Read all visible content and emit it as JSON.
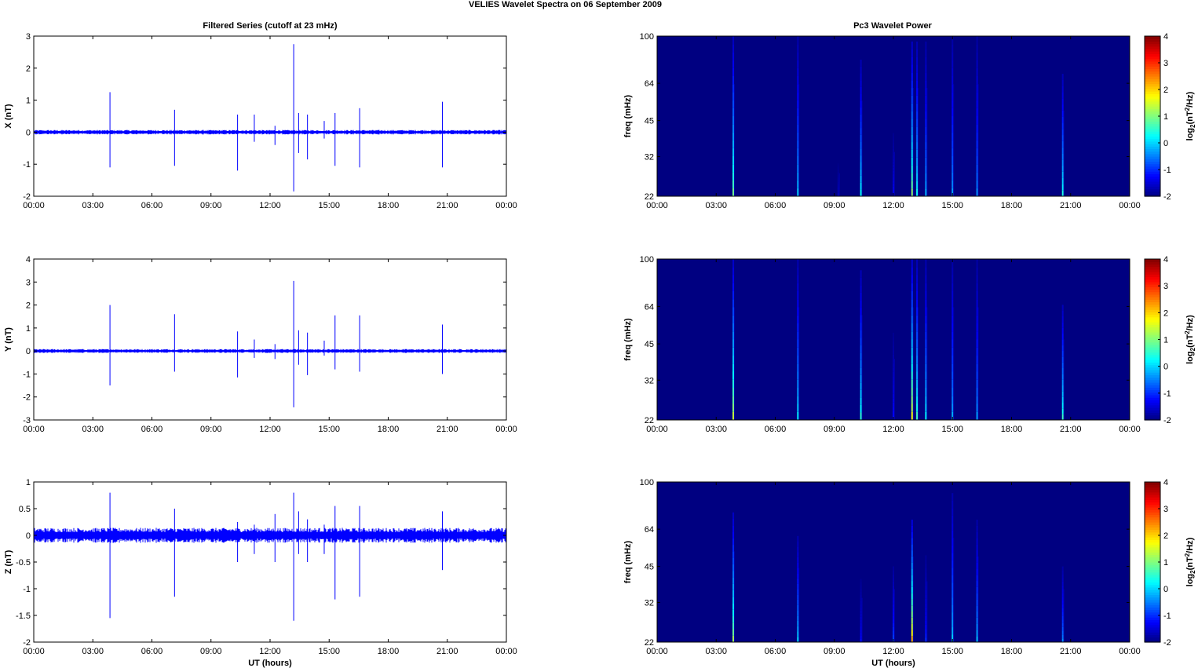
{
  "figure": {
    "title": "VELIES Wavelet Spectra on 06 September 2009",
    "left_title": "Filtered Series (cutoff at 23 mHz)",
    "right_title": "Pc3 Wavelet Power"
  },
  "chart_data": [
    {
      "type": "line",
      "title": "Filtered Series (cutoff at 23 mHz)",
      "xlabel": "",
      "ylabel": "X (nT)",
      "xlim": [
        "00:00",
        "00:00"
      ],
      "x_ticks": [
        "00:00",
        "03:00",
        "06:00",
        "09:00",
        "12:00",
        "15:00",
        "18:00",
        "21:00",
        "00:00"
      ],
      "ylim": [
        -2,
        3
      ],
      "y_ticks": [
        "-2",
        "-1",
        "0",
        "1",
        "2",
        "3"
      ],
      "color": "#0000ff",
      "noise_amplitude_nT": 0.05,
      "spikes": [
        {
          "time_h": 3.87,
          "max": 1.25,
          "min": -1.1
        },
        {
          "time_h": 7.15,
          "max": 0.7,
          "min": -1.05
        },
        {
          "time_h": 10.35,
          "max": 0.55,
          "min": -1.2
        },
        {
          "time_h": 11.2,
          "max": 0.55,
          "min": -0.3
        },
        {
          "time_h": 12.25,
          "max": 0.2,
          "min": -0.4
        },
        {
          "time_h": 13.2,
          "max": 2.75,
          "min": -1.85
        },
        {
          "time_h": 13.45,
          "max": 0.6,
          "min": -0.65
        },
        {
          "time_h": 13.9,
          "max": 0.55,
          "min": -0.85
        },
        {
          "time_h": 14.75,
          "max": 0.35,
          "min": -0.2
        },
        {
          "time_h": 15.3,
          "max": 0.6,
          "min": -1.05
        },
        {
          "time_h": 16.55,
          "max": 0.75,
          "min": -1.1
        },
        {
          "time_h": 20.75,
          "max": 0.95,
          "min": -1.1
        }
      ]
    },
    {
      "type": "line",
      "title": "",
      "xlabel": "",
      "ylabel": "Y (nT)",
      "xlim": [
        "00:00",
        "00:00"
      ],
      "x_ticks": [
        "00:00",
        "03:00",
        "06:00",
        "09:00",
        "12:00",
        "15:00",
        "18:00",
        "21:00",
        "00:00"
      ],
      "ylim": [
        -3,
        4
      ],
      "y_ticks": [
        "-3",
        "-2",
        "-1",
        "0",
        "1",
        "2",
        "3",
        "4"
      ],
      "color": "#0000ff",
      "noise_amplitude_nT": 0.06,
      "spikes": [
        {
          "time_h": 3.87,
          "max": 2.0,
          "min": -1.5
        },
        {
          "time_h": 7.15,
          "max": 1.6,
          "min": -0.9
        },
        {
          "time_h": 10.35,
          "max": 0.85,
          "min": -1.15
        },
        {
          "time_h": 11.2,
          "max": 0.5,
          "min": -0.3
        },
        {
          "time_h": 12.25,
          "max": 0.3,
          "min": -0.35
        },
        {
          "time_h": 13.2,
          "max": 3.05,
          "min": -2.45
        },
        {
          "time_h": 13.45,
          "max": 0.9,
          "min": -0.6
        },
        {
          "time_h": 13.9,
          "max": 0.8,
          "min": -1.05
        },
        {
          "time_h": 14.75,
          "max": 0.45,
          "min": -0.2
        },
        {
          "time_h": 15.3,
          "max": 1.55,
          "min": -0.8
        },
        {
          "time_h": 16.55,
          "max": 1.55,
          "min": -0.9
        },
        {
          "time_h": 20.75,
          "max": 1.15,
          "min": -1.0
        }
      ]
    },
    {
      "type": "line",
      "title": "",
      "xlabel": "UT (hours)",
      "ylabel": "Z (nT)",
      "xlim": [
        "00:00",
        "00:00"
      ],
      "x_ticks": [
        "00:00",
        "03:00",
        "06:00",
        "09:00",
        "12:00",
        "15:00",
        "18:00",
        "21:00",
        "00:00"
      ],
      "ylim": [
        -2,
        1
      ],
      "y_ticks": [
        "-2",
        "-1.5",
        "-1",
        "-0.5",
        "0",
        "0.5",
        "1"
      ],
      "color": "#0000ff",
      "noise_amplitude_nT": 0.1,
      "spikes": [
        {
          "time_h": 3.87,
          "max": 0.8,
          "min": -1.55
        },
        {
          "time_h": 7.15,
          "max": 0.5,
          "min": -1.15
        },
        {
          "time_h": 10.35,
          "max": 0.25,
          "min": -0.5
        },
        {
          "time_h": 11.2,
          "max": 0.2,
          "min": -0.35
        },
        {
          "time_h": 12.25,
          "max": 0.4,
          "min": -0.5
        },
        {
          "time_h": 13.2,
          "max": 0.8,
          "min": -1.6
        },
        {
          "time_h": 13.45,
          "max": 0.45,
          "min": -0.35
        },
        {
          "time_h": 13.9,
          "max": 0.3,
          "min": -0.5
        },
        {
          "time_h": 14.75,
          "max": 0.2,
          "min": -0.35
        },
        {
          "time_h": 15.3,
          "max": 0.55,
          "min": -1.2
        },
        {
          "time_h": 16.55,
          "max": 0.55,
          "min": -1.15
        },
        {
          "time_h": 20.75,
          "max": 0.45,
          "min": -0.65
        }
      ]
    },
    {
      "type": "heatmap",
      "title": "Pc3 Wavelet Power",
      "xlabel": "",
      "ylabel": "freq (mHz)",
      "x_ticks": [
        "00:00",
        "03:00",
        "06:00",
        "09:00",
        "12:00",
        "15:00",
        "18:00",
        "21:00",
        "00:00"
      ],
      "y_ticks": [
        "22",
        "32",
        "45",
        "64",
        "100"
      ],
      "ylim_mHz": [
        22,
        100
      ],
      "y_scale": "log",
      "colorbar": {
        "label": "log2(nT2/Hz)",
        "range": [
          -2,
          4
        ],
        "ticks": [
          "-2",
          "-1",
          "0",
          "1",
          "2",
          "3",
          "4"
        ],
        "colormap": "jet"
      },
      "background_value": -2,
      "streaks": [
        {
          "time_h": 3.87,
          "peak": 0.9,
          "top_mHz": 100
        },
        {
          "time_h": 7.15,
          "peak": 0.0,
          "top_mHz": 100
        },
        {
          "time_h": 9.2,
          "peak": -1.6,
          "top_mHz": 30
        },
        {
          "time_h": 10.35,
          "peak": 0.3,
          "top_mHz": 80
        },
        {
          "time_h": 12.0,
          "peak": -1.3,
          "top_mHz": 40
        },
        {
          "time_h": 12.95,
          "peak": 1.1,
          "top_mHz": 95
        },
        {
          "time_h": 13.2,
          "peak": 0.3,
          "top_mHz": 95
        },
        {
          "time_h": 13.65,
          "peak": -0.2,
          "top_mHz": 95
        },
        {
          "time_h": 15.0,
          "peak": -0.3,
          "top_mHz": 100
        },
        {
          "time_h": 16.25,
          "peak": -0.4,
          "top_mHz": 100
        },
        {
          "time_h": 20.6,
          "peak": 0.4,
          "top_mHz": 70
        }
      ]
    },
    {
      "type": "heatmap",
      "title": "",
      "xlabel": "",
      "ylabel": "freq (mHz)",
      "x_ticks": [
        "00:00",
        "03:00",
        "06:00",
        "09:00",
        "12:00",
        "15:00",
        "18:00",
        "21:00",
        "00:00"
      ],
      "y_ticks": [
        "22",
        "32",
        "45",
        "64",
        "100"
      ],
      "ylim_mHz": [
        22,
        100
      ],
      "y_scale": "log",
      "colorbar": {
        "label": "log2(nT2/Hz)",
        "range": [
          -2,
          4
        ],
        "ticks": [
          "-2",
          "-1",
          "0",
          "1",
          "2",
          "3",
          "4"
        ],
        "colormap": "jet"
      },
      "background_value": -2,
      "streaks": [
        {
          "time_h": 3.87,
          "peak": 1.4,
          "top_mHz": 100
        },
        {
          "time_h": 7.15,
          "peak": 0.2,
          "top_mHz": 100
        },
        {
          "time_h": 10.35,
          "peak": 0.5,
          "top_mHz": 90
        },
        {
          "time_h": 12.0,
          "peak": -1.2,
          "top_mHz": 50
        },
        {
          "time_h": 12.95,
          "peak": 1.7,
          "top_mHz": 100
        },
        {
          "time_h": 13.2,
          "peak": 0.6,
          "top_mHz": 100
        },
        {
          "time_h": 13.65,
          "peak": 0.2,
          "top_mHz": 100
        },
        {
          "time_h": 15.0,
          "peak": -0.2,
          "top_mHz": 100
        },
        {
          "time_h": 16.25,
          "peak": -0.3,
          "top_mHz": 100
        },
        {
          "time_h": 20.6,
          "peak": 0.6,
          "top_mHz": 65
        }
      ]
    },
    {
      "type": "heatmap",
      "title": "",
      "xlabel": "UT (hours)",
      "ylabel": "freq (mHz)",
      "x_ticks": [
        "00:00",
        "03:00",
        "06:00",
        "09:00",
        "12:00",
        "15:00",
        "18:00",
        "21:00",
        "00:00"
      ],
      "y_ticks": [
        "22",
        "32",
        "45",
        "64",
        "100"
      ],
      "ylim_mHz": [
        22,
        100
      ],
      "y_scale": "log",
      "colorbar": {
        "label": "log2(nT2/Hz)",
        "range": [
          -2,
          4
        ],
        "ticks": [
          "-2",
          "-1",
          "0",
          "1",
          "2",
          "3",
          "4"
        ],
        "colormap": "jet"
      },
      "background_value": -2,
      "streaks": [
        {
          "time_h": 3.87,
          "peak": 1.2,
          "top_mHz": 75
        },
        {
          "time_h": 7.15,
          "peak": 0.1,
          "top_mHz": 60
        },
        {
          "time_h": 10.35,
          "peak": -1.2,
          "top_mHz": 40
        },
        {
          "time_h": 12.0,
          "peak": -0.8,
          "top_mHz": 45
        },
        {
          "time_h": 12.95,
          "peak": 2.2,
          "top_mHz": 70
        },
        {
          "time_h": 13.65,
          "peak": -1.0,
          "top_mHz": 50
        },
        {
          "time_h": 15.0,
          "peak": 0.0,
          "top_mHz": 90
        },
        {
          "time_h": 16.25,
          "peak": -0.1,
          "top_mHz": 70
        },
        {
          "time_h": 20.6,
          "peak": -0.4,
          "top_mHz": 45
        }
      ]
    }
  ]
}
